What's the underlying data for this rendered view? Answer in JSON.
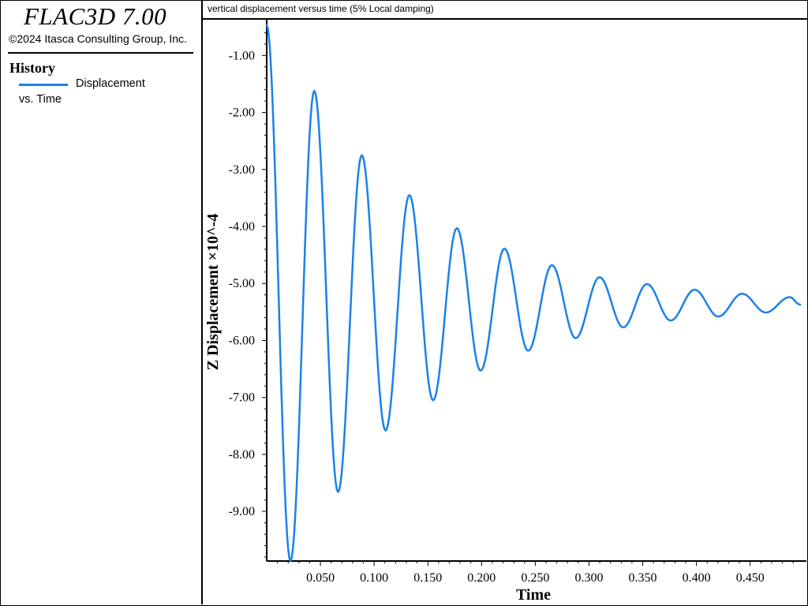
{
  "app": {
    "title": "FLAC3D 7.00",
    "copyright": "©2024 Itasca Consulting Group, Inc."
  },
  "legend": {
    "heading": "History",
    "entry_line1": "Displacement",
    "entry_line2": "vs. Time",
    "swatch_color": "#1a82e8"
  },
  "plot": {
    "title": "vertical displacement versus time (5% Local damping)"
  },
  "chart_data": {
    "type": "line",
    "title": "vertical displacement versus time (5% Local damping)",
    "xlabel": "Time",
    "ylabel": "Z Displacement ×10^-4",
    "xlim": [
      0.0,
      0.4965
    ],
    "ylim": [
      -9.87,
      -0.47
    ],
    "xticks": [
      0.05,
      0.1,
      0.15,
      0.2,
      0.25,
      0.3,
      0.35,
      0.4,
      0.45
    ],
    "xtick_labels": [
      "0.050",
      "0.100",
      "0.150",
      "0.200",
      "0.250",
      "0.300",
      "0.350",
      "0.400",
      "0.450"
    ],
    "yticks": [
      -1,
      -2,
      -3,
      -4,
      -5,
      -6,
      -7,
      -8,
      -9
    ],
    "ytick_labels": [
      "-1.00",
      "-2.00",
      "-3.00",
      "-4.00",
      "-5.00",
      "-6.00",
      "-7.00",
      "-8.00",
      "-9.00"
    ],
    "series": [
      {
        "name": "Displacement vs. Time",
        "color": "#1a82e8",
        "x": [
          0.0,
          0.0221,
          0.0443,
          0.0664,
          0.0885,
          0.1106,
          0.1328,
          0.1549,
          0.177,
          0.1991,
          0.2213,
          0.2434,
          0.2655,
          0.2876,
          0.3098,
          0.3319,
          0.354,
          0.3761,
          0.3983,
          0.4204,
          0.4425,
          0.4646,
          0.4868,
          0.4965
        ],
        "y": [
          -0.47,
          -9.87,
          -1.62,
          -8.66,
          -2.75,
          -7.58,
          -3.45,
          -7.05,
          -4.03,
          -6.53,
          -4.39,
          -6.18,
          -4.68,
          -5.96,
          -4.89,
          -5.77,
          -5.01,
          -5.65,
          -5.11,
          -5.58,
          -5.18,
          -5.51,
          -5.24,
          -5.37
        ]
      }
    ]
  }
}
